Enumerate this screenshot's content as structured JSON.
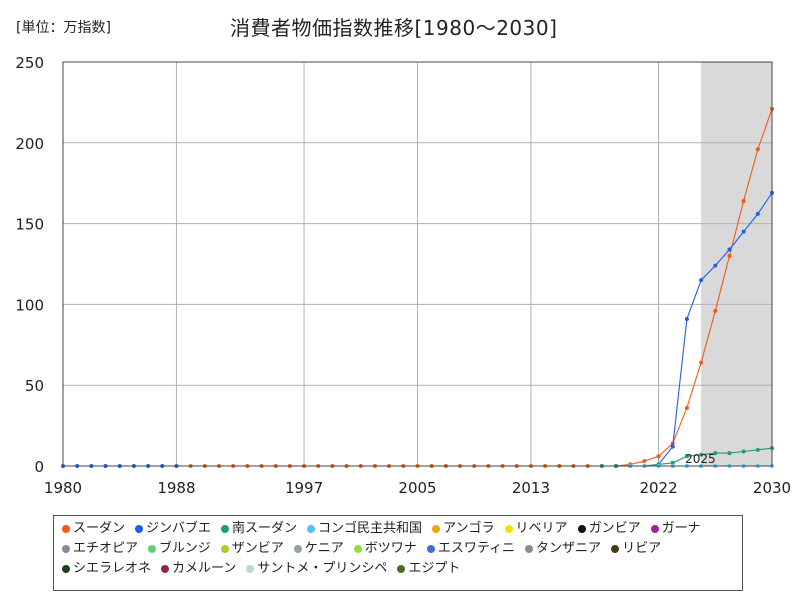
{
  "header": {
    "unit": "[単位：万指数]"
  },
  "chart_data": {
    "type": "line",
    "title": "消費者物価指数推移[1980～2030]",
    "xlabel": "",
    "ylabel": "",
    "xlim": [
      1980,
      2030
    ],
    "ylim": [
      0,
      250
    ],
    "xticks": [
      1980,
      1988,
      1997,
      2005,
      2013,
      2022,
      2030
    ],
    "yticks": [
      0,
      50,
      100,
      150,
      200,
      250
    ],
    "grid": true,
    "forecast_start": 2025,
    "forecast_label": "2025",
    "legend_position": "bottom",
    "series": [
      {
        "name": "スーダン",
        "color": "#f05a1a",
        "x": [
          1989,
          1990,
          1991,
          1992,
          1993,
          1994,
          1995,
          1996,
          1997,
          1998,
          1999,
          2000,
          2001,
          2002,
          2003,
          2004,
          2005,
          2006,
          2007,
          2008,
          2009,
          2010,
          2011,
          2012,
          2013,
          2014,
          2015,
          2016,
          2017,
          2018,
          2019,
          2020,
          2021,
          2022,
          2023,
          2024,
          2025,
          2026,
          2027,
          2028,
          2029,
          2030
        ],
        "y": [
          0,
          0,
          0,
          0,
          0,
          0,
          0,
          0,
          0,
          0,
          0,
          0,
          0,
          0,
          0,
          0,
          0,
          0,
          0,
          0,
          0,
          0,
          0,
          0,
          0,
          0,
          0,
          0,
          0,
          0,
          0,
          1,
          3,
          6,
          14,
          36,
          64,
          96,
          130,
          164,
          196,
          221
        ]
      },
      {
        "name": "ジンバブエ",
        "color": "#1e5fe6",
        "x": [
          1980,
          1981,
          1982,
          1983,
          1984,
          1985,
          1986,
          1987,
          1988,
          2019,
          2020,
          2021,
          2022,
          2023,
          2024,
          2025,
          2026,
          2027,
          2028,
          2029,
          2030
        ],
        "y": [
          0,
          0,
          0,
          0,
          0,
          0,
          0,
          0,
          0,
          0,
          0,
          0,
          1,
          12,
          91,
          115,
          124,
          134,
          145,
          156,
          169
        ]
      },
      {
        "name": "南スーダン",
        "color": "#1e9e78",
        "x": [
          2018,
          2019,
          2020,
          2021,
          2022,
          2023,
          2024,
          2025,
          2026,
          2027,
          2028,
          2029,
          2030
        ],
        "y": [
          0,
          0,
          0,
          0,
          1,
          2,
          6,
          7,
          8,
          8,
          9,
          10,
          11
        ]
      },
      {
        "name": "コンゴ民主共和国",
        "color": "#4fc3f7",
        "x": [
          2020,
          2021,
          2022,
          2023,
          2024,
          2025,
          2026,
          2027,
          2028,
          2029,
          2030
        ],
        "y": [
          0,
          0,
          0,
          0,
          0,
          0,
          0,
          0,
          0,
          0,
          0
        ]
      },
      {
        "name": "アンゴラ",
        "color": "#f0a500",
        "x": [],
        "y": []
      },
      {
        "name": "リベリア",
        "color": "#f5e000",
        "x": [],
        "y": []
      },
      {
        "name": "ガンビア",
        "color": "#111111",
        "x": [],
        "y": []
      },
      {
        "name": "ガーナ",
        "color": "#a020a0",
        "x": [],
        "y": []
      },
      {
        "name": "エチオピア",
        "color": "#7f8c9a",
        "x": [],
        "y": []
      },
      {
        "name": "ブルンジ",
        "color": "#5ed16a",
        "x": [],
        "y": []
      },
      {
        "name": "ザンビア",
        "color": "#a6d12a",
        "x": [],
        "y": []
      },
      {
        "name": "ケニア",
        "color": "#8fa3a8",
        "x": [],
        "y": []
      },
      {
        "name": "ボツワナ",
        "color": "#8fe03a",
        "x": [],
        "y": []
      },
      {
        "name": "エスワティニ",
        "color": "#3f6fd6",
        "x": [],
        "y": []
      },
      {
        "name": "タンザニア",
        "color": "#8a8a8a",
        "x": [],
        "y": []
      },
      {
        "name": "リビア",
        "color": "#4a3a1a",
        "x": [],
        "y": []
      },
      {
        "name": "シエラレオネ",
        "color": "#1f3f1f",
        "x": [],
        "y": []
      },
      {
        "name": "カメルーン",
        "color": "#8a2a4a",
        "x": [],
        "y": []
      },
      {
        "name": "サントメ・プリンシペ",
        "color": "#b8d8d0",
        "x": [],
        "y": []
      },
      {
        "name": "エジプト",
        "color": "#4a6a2a",
        "x": [],
        "y": []
      }
    ]
  }
}
